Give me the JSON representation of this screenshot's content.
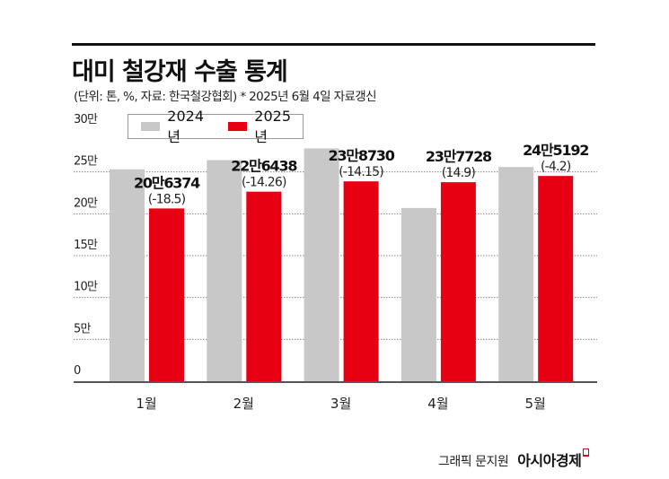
{
  "title": "대미 철강재 수출 통계",
  "subtitle": "(단위: 톤, %, 자료: 한국철강협회)  * 2025년 6월 4일 자료갱신",
  "credit": {
    "byline": "그래픽 문지원",
    "brand": "아시아경제"
  },
  "colors": {
    "series_2024": "#c8c8c8",
    "series_2025": "#e60012"
  },
  "chart_data": {
    "type": "bar",
    "categories": [
      "1월",
      "2월",
      "3월",
      "4월",
      "5월"
    ],
    "series": [
      {
        "name": "2024년",
        "values": [
          253200,
          264100,
          278100,
          206900,
          255900
        ]
      },
      {
        "name": "2025년",
        "values": [
          206374,
          226438,
          238730,
          237728,
          245192
        ],
        "labels": [
          "20만6374",
          "22만6438",
          "23만8730",
          "23만7728",
          "24만5192"
        ],
        "changes": [
          "(-18.5)",
          "(-14.26)",
          "(-14.15)",
          "(14.9)",
          "(-4.2)"
        ]
      }
    ],
    "ylim": [
      0,
      300000
    ],
    "yticks": [
      0,
      50000,
      100000,
      150000,
      200000,
      250000,
      300000
    ],
    "ytick_labels": [
      "0",
      "5만",
      "10만",
      "15만",
      "20만",
      "25만",
      "30만"
    ],
    "grid": true,
    "legend": "top-left"
  }
}
